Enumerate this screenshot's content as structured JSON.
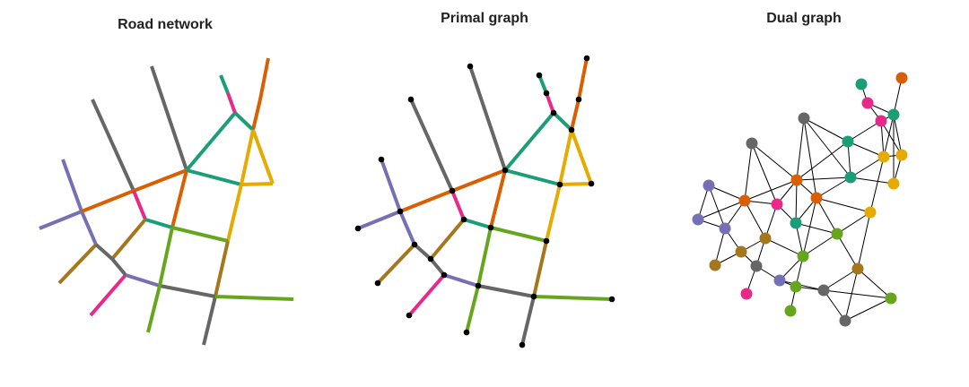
{
  "panels": [
    {
      "id": "road",
      "title": "Road network"
    },
    {
      "id": "primal",
      "title": "Primal graph"
    },
    {
      "id": "dual",
      "title": "Dual graph"
    }
  ],
  "colors": {
    "teal": "#1b9e77",
    "orange": "#d95f02",
    "purple": "#7570b3",
    "magenta": "#e7298a",
    "green": "#66a61e",
    "yellow": "#e6ab02",
    "brown": "#a6761d",
    "gray": "#666666",
    "node": "#000000",
    "edge": "#000000"
  }
}
